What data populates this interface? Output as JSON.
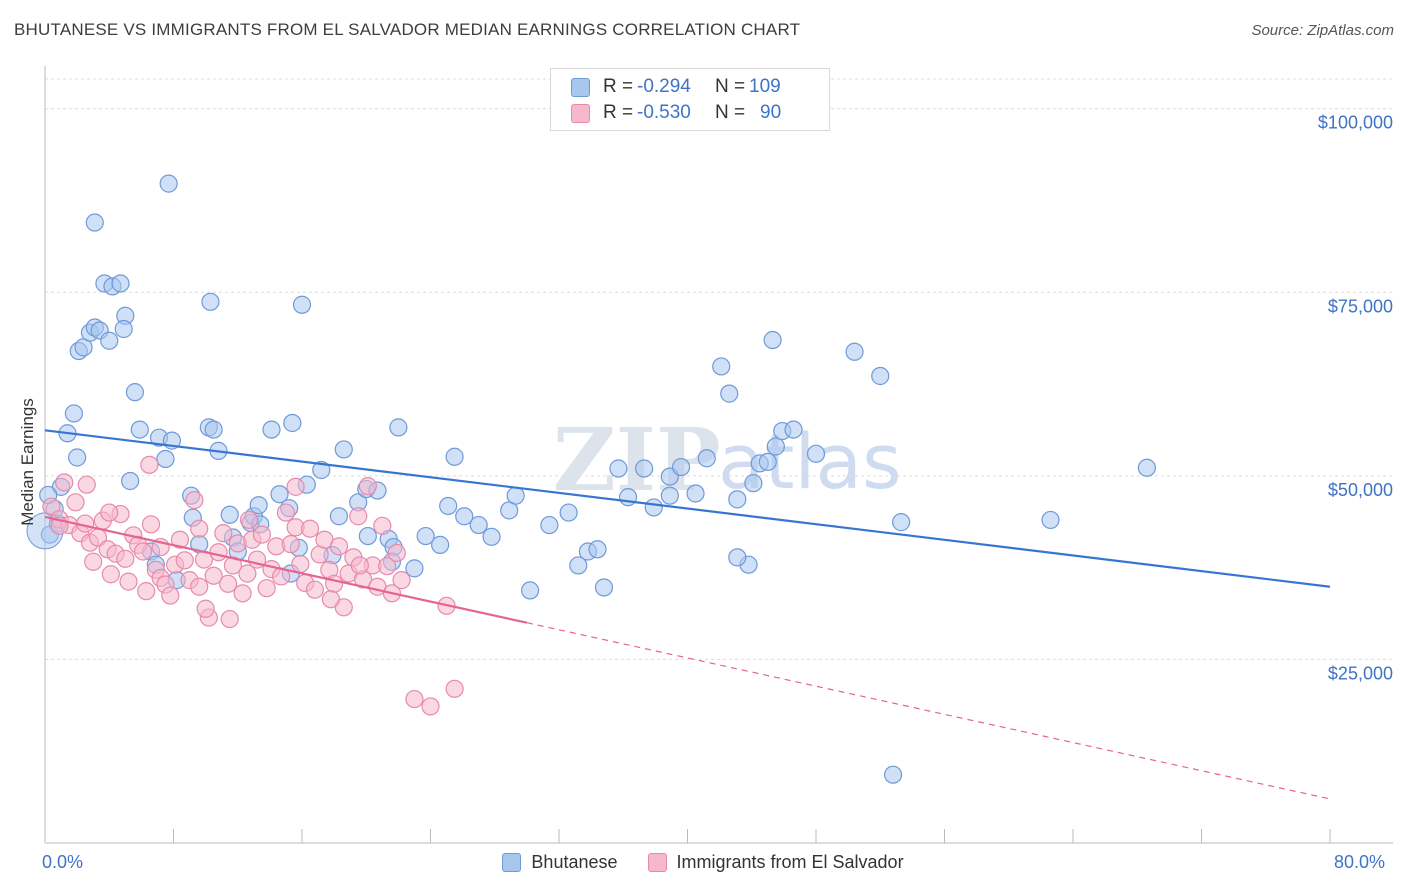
{
  "title": "BHUTANESE VS IMMIGRANTS FROM EL SALVADOR MEDIAN EARNINGS CORRELATION CHART",
  "source": "Source: ZipAtlas.com",
  "watermark": {
    "zip": "ZIP",
    "atlas": "atlas"
  },
  "legend_top": [
    {
      "r_label": "R =",
      "r_value": "-0.294",
      "n_label": "N =",
      "n_value": "109"
    },
    {
      "r_label": "R =",
      "r_value": "-0.530",
      "n_label": "N =",
      "n_value": "90"
    }
  ],
  "colors": {
    "blue_fill": "#a9c6ef",
    "blue_stroke": "#6f9ad8",
    "blue_line": "#3576d2",
    "pink_fill": "#f6b8cc",
    "pink_stroke": "#e88aaa",
    "pink_line": "#e46590",
    "tick_label": "#3f73c7",
    "grid": "#dcdcdc"
  },
  "chart_data": {
    "type": "scatter",
    "title": "BHUTANESE VS IMMIGRANTS FROM EL SALVADOR MEDIAN EARNINGS CORRELATION CHART",
    "ylabel": "Median Earnings",
    "xlabel": "",
    "xlim": [
      0,
      80
    ],
    "ylim": [
      0,
      105000
    ],
    "x_tick_labels": [
      "0.0%",
      "80.0%"
    ],
    "y_ticks": [
      25000,
      50000,
      75000,
      100000
    ],
    "y_tick_labels": [
      "$25,000",
      "$50,000",
      "$75,000",
      "$100,000"
    ],
    "grid": true,
    "legend_position": "bottom",
    "series": [
      {
        "name": "Bhutanese",
        "r": -0.294,
        "n": 109,
        "trend": {
          "x": [
            0,
            80
          ],
          "y": [
            56200,
            34900
          ]
        },
        "points": [
          [
            0.3,
            42000
          ],
          [
            0.6,
            45500
          ],
          [
            1.0,
            48500
          ],
          [
            0.8,
            43500
          ],
          [
            1.4,
            55800
          ],
          [
            1.8,
            58500
          ],
          [
            2.1,
            67000
          ],
          [
            2.4,
            67500
          ],
          [
            2.8,
            69500
          ],
          [
            3.1,
            70200
          ],
          [
            3.4,
            69800
          ],
          [
            3.7,
            76200
          ],
          [
            4.2,
            75800
          ],
          [
            4.7,
            76200
          ],
          [
            5.0,
            71800
          ],
          [
            4.9,
            70000
          ],
          [
            5.6,
            61400
          ],
          [
            5.9,
            56300
          ],
          [
            6.6,
            39700
          ],
          [
            7.1,
            55200
          ],
          [
            6.9,
            37900
          ],
          [
            7.5,
            52300
          ],
          [
            7.9,
            54800
          ],
          [
            8.2,
            35800
          ],
          [
            9.1,
            47300
          ],
          [
            9.6,
            40700
          ],
          [
            10.2,
            56600
          ],
          [
            10.5,
            56300
          ],
          [
            10.8,
            53400
          ],
          [
            11.5,
            44700
          ],
          [
            11.7,
            41600
          ],
          [
            12.0,
            39700
          ],
          [
            12.8,
            43600
          ],
          [
            13.0,
            44500
          ],
          [
            13.3,
            46000
          ],
          [
            14.1,
            56300
          ],
          [
            14.6,
            47500
          ],
          [
            15.3,
            36700
          ],
          [
            15.4,
            57200
          ],
          [
            15.8,
            40200
          ],
          [
            16.3,
            48800
          ],
          [
            17.2,
            50800
          ],
          [
            17.9,
            39200
          ],
          [
            18.3,
            44500
          ],
          [
            18.6,
            53600
          ],
          [
            19.5,
            46400
          ],
          [
            20.0,
            48200
          ],
          [
            20.7,
            48000
          ],
          [
            20.1,
            41800
          ],
          [
            21.4,
            41400
          ],
          [
            21.7,
            40300
          ],
          [
            22.0,
            56600
          ],
          [
            23.0,
            37400
          ],
          [
            23.7,
            41800
          ],
          [
            24.6,
            40600
          ],
          [
            25.1,
            45900
          ],
          [
            25.5,
            52600
          ],
          [
            26.1,
            44500
          ],
          [
            27.0,
            43300
          ],
          [
            27.8,
            41700
          ],
          [
            28.9,
            45300
          ],
          [
            29.3,
            47300
          ],
          [
            30.2,
            34400
          ],
          [
            31.4,
            43300
          ],
          [
            32.6,
            45000
          ],
          [
            33.2,
            37800
          ],
          [
            33.8,
            39700
          ],
          [
            34.4,
            40000
          ],
          [
            34.8,
            34800
          ],
          [
            35.7,
            51000
          ],
          [
            36.3,
            47100
          ],
          [
            37.3,
            51000
          ],
          [
            37.9,
            45700
          ],
          [
            38.9,
            49900
          ],
          [
            39.6,
            51200
          ],
          [
            40.5,
            47600
          ],
          [
            41.2,
            52400
          ],
          [
            42.6,
            61200
          ],
          [
            43.1,
            46800
          ],
          [
            43.8,
            37900
          ],
          [
            44.5,
            51700
          ],
          [
            45.0,
            51900
          ],
          [
            45.5,
            54000
          ],
          [
            45.9,
            56100
          ],
          [
            46.6,
            56300
          ],
          [
            48.0,
            53000
          ],
          [
            50.4,
            66900
          ],
          [
            52.0,
            63600
          ],
          [
            53.3,
            43700
          ],
          [
            62.6,
            44000
          ],
          [
            68.6,
            51100
          ],
          [
            52.8,
            9300
          ],
          [
            43.1,
            38900
          ],
          [
            45.3,
            68500
          ],
          [
            42.1,
            64900
          ],
          [
            44.1,
            49000
          ],
          [
            38.9,
            47300
          ],
          [
            3.1,
            84500
          ],
          [
            7.7,
            89800
          ],
          [
            16.0,
            73300
          ],
          [
            10.3,
            73700
          ],
          [
            4.0,
            68400
          ],
          [
            0.2,
            47400
          ],
          [
            2.0,
            52500
          ],
          [
            5.3,
            49300
          ],
          [
            9.2,
            44300
          ],
          [
            13.4,
            43400
          ],
          [
            15.2,
            45600
          ],
          [
            21.6,
            38300
          ]
        ]
      },
      {
        "name": "Immigrants from El Salvador",
        "r": -0.53,
        "n": 90,
        "trend": {
          "x": [
            0,
            30
          ],
          "y": [
            44400,
            30000
          ]
        },
        "trend_dashed": {
          "x": [
            30,
            80
          ],
          "y": [
            30000,
            6000
          ]
        },
        "points": [
          [
            0.4,
            45800
          ],
          [
            0.9,
            44100
          ],
          [
            1.2,
            49100
          ],
          [
            1.5,
            43300
          ],
          [
            1.9,
            46400
          ],
          [
            2.2,
            42200
          ],
          [
            2.5,
            43500
          ],
          [
            2.8,
            40900
          ],
          [
            3.0,
            38300
          ],
          [
            3.3,
            41600
          ],
          [
            3.6,
            43900
          ],
          [
            3.9,
            40000
          ],
          [
            4.1,
            36600
          ],
          [
            4.4,
            39400
          ],
          [
            4.7,
            44800
          ],
          [
            5.0,
            38700
          ],
          [
            5.2,
            35600
          ],
          [
            5.5,
            41900
          ],
          [
            5.8,
            40600
          ],
          [
            6.1,
            39700
          ],
          [
            6.3,
            34300
          ],
          [
            6.6,
            43400
          ],
          [
            6.9,
            37200
          ],
          [
            7.2,
            36100
          ],
          [
            7.5,
            35200
          ],
          [
            7.8,
            33700
          ],
          [
            8.1,
            37900
          ],
          [
            8.4,
            41300
          ],
          [
            8.7,
            38500
          ],
          [
            9.0,
            35800
          ],
          [
            9.3,
            46700
          ],
          [
            9.6,
            42800
          ],
          [
            9.9,
            38600
          ],
          [
            10.2,
            30700
          ],
          [
            10.5,
            36400
          ],
          [
            10.8,
            39600
          ],
          [
            11.1,
            42200
          ],
          [
            11.4,
            35300
          ],
          [
            11.7,
            37800
          ],
          [
            12.0,
            40800
          ],
          [
            12.3,
            34000
          ],
          [
            12.6,
            36700
          ],
          [
            12.9,
            41300
          ],
          [
            13.2,
            38600
          ],
          [
            13.5,
            42000
          ],
          [
            13.8,
            34700
          ],
          [
            14.1,
            37300
          ],
          [
            14.4,
            40400
          ],
          [
            14.7,
            36300
          ],
          [
            15.0,
            45000
          ],
          [
            15.3,
            40700
          ],
          [
            15.6,
            43000
          ],
          [
            15.9,
            38000
          ],
          [
            16.2,
            35400
          ],
          [
            16.5,
            42800
          ],
          [
            16.8,
            34500
          ],
          [
            17.1,
            39300
          ],
          [
            17.4,
            41300
          ],
          [
            17.7,
            37200
          ],
          [
            18.0,
            35300
          ],
          [
            18.3,
            40400
          ],
          [
            18.6,
            32100
          ],
          [
            18.9,
            36700
          ],
          [
            19.2,
            38900
          ],
          [
            19.5,
            44500
          ],
          [
            19.8,
            35900
          ],
          [
            20.1,
            48600
          ],
          [
            20.4,
            37800
          ],
          [
            20.7,
            34900
          ],
          [
            21.0,
            43200
          ],
          [
            21.3,
            37700
          ],
          [
            21.6,
            34000
          ],
          [
            21.9,
            39500
          ],
          [
            22.2,
            35800
          ],
          [
            23.0,
            19600
          ],
          [
            24.0,
            18600
          ],
          [
            25.5,
            21000
          ],
          [
            6.5,
            51500
          ],
          [
            4.0,
            45000
          ],
          [
            2.6,
            48800
          ],
          [
            7.2,
            40300
          ],
          [
            10.0,
            31900
          ],
          [
            11.5,
            30500
          ],
          [
            15.6,
            48500
          ],
          [
            17.8,
            33200
          ],
          [
            19.6,
            37800
          ],
          [
            12.7,
            44000
          ],
          [
            9.6,
            34900
          ],
          [
            25.0,
            32300
          ],
          [
            0.9,
            43200
          ]
        ]
      }
    ]
  },
  "x_axis_labels": {
    "left": "0.0%",
    "right": "80.0%"
  },
  "legend_bottom": [
    "Bhutanese",
    "Immigrants from El Salvador"
  ]
}
